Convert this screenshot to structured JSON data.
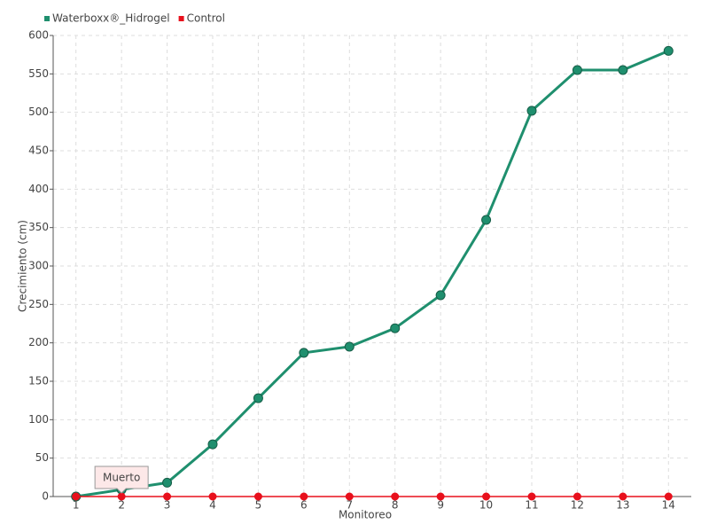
{
  "chart_data": {
    "type": "line",
    "x_label": "Monitoreo",
    "y_label": "Crecimiento (cm)",
    "categories": [
      "1",
      "2",
      "3",
      "4",
      "5",
      "6",
      "7",
      "8",
      "9",
      "10",
      "11",
      "12",
      "13",
      "14"
    ],
    "series": [
      {
        "name": "Waterboxx®_Hidrogel",
        "color": "#1f8f6e",
        "values": [
          0,
          9,
          18,
          68,
          128,
          187,
          195,
          219,
          262,
          360,
          502,
          555,
          555,
          580
        ]
      },
      {
        "name": "Control",
        "color": "#e8101c",
        "values": [
          0,
          0,
          0,
          0,
          0,
          0,
          0,
          0,
          0,
          0,
          0,
          0,
          0,
          0
        ]
      }
    ],
    "annotation": "Muerto",
    "ylim": [
      0,
      600
    ],
    "yticks": [
      0,
      50,
      100,
      150,
      200,
      250,
      300,
      350,
      400,
      450,
      500,
      550,
      600
    ],
    "grid": true,
    "legend": "top-left"
  }
}
